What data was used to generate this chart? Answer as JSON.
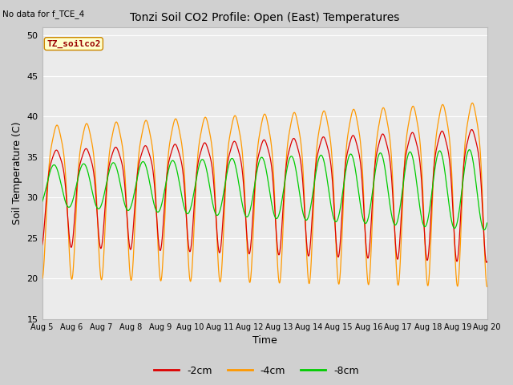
{
  "title": "Tonzi Soil CO2 Profile: Open (East) Temperatures",
  "xlabel": "Time",
  "ylabel": "Soil Temperature (C)",
  "ylim": [
    15,
    51
  ],
  "yticks": [
    15,
    20,
    25,
    30,
    35,
    40,
    45,
    50
  ],
  "no_data_text": "No data for f_TCE_4",
  "box_label": "TZ_soilco2",
  "n_days": 15,
  "colors": {
    "2cm": "#dd0000",
    "4cm": "#ff9900",
    "8cm": "#00cc00"
  },
  "legend_labels": [
    "-2cm",
    "-4cm",
    "-8cm"
  ],
  "fig_facecolor": "#d0d0d0",
  "plot_facecolor": "#ebebeb"
}
